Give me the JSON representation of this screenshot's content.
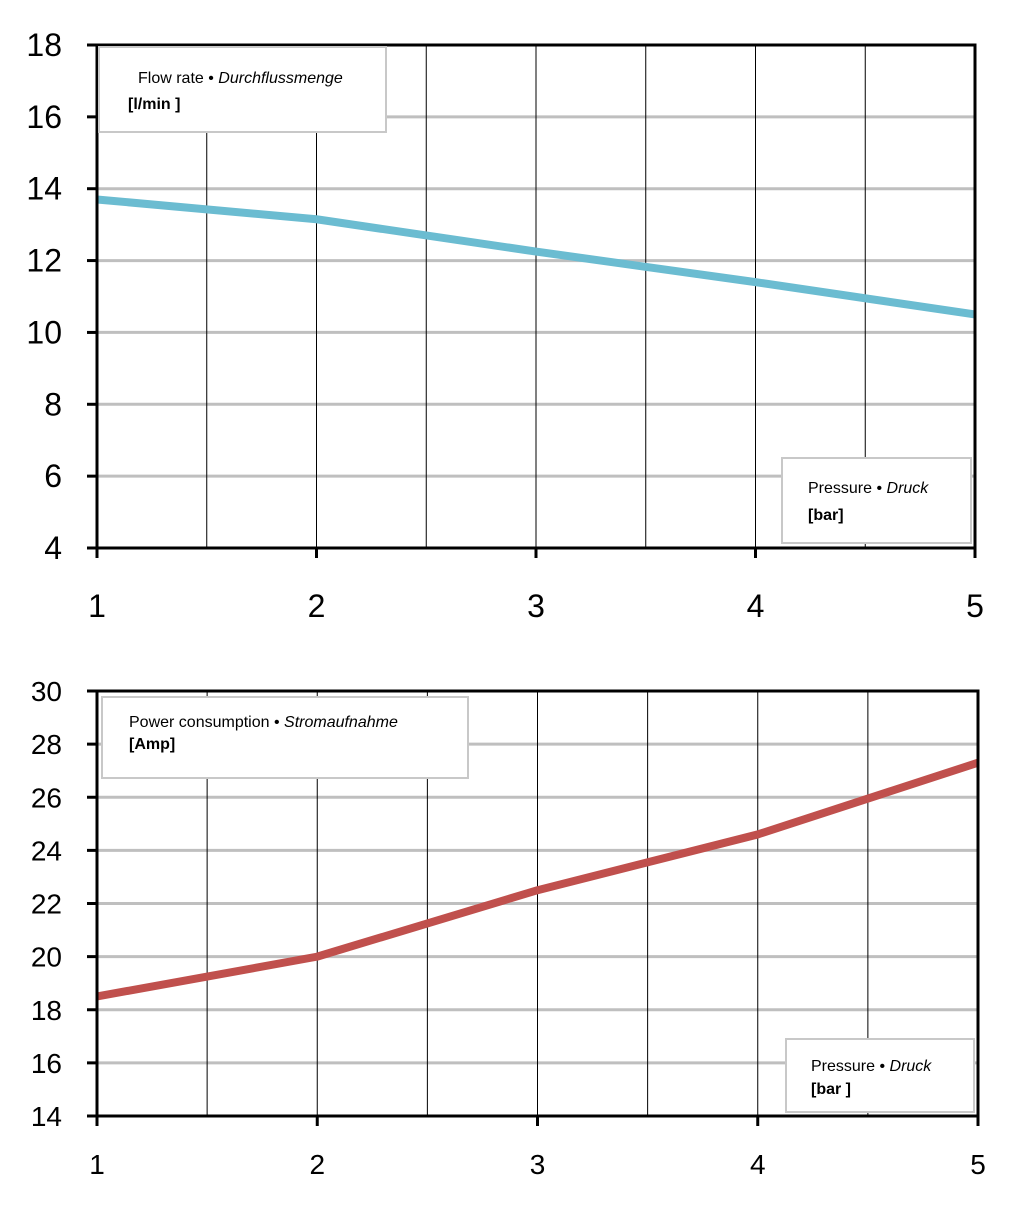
{
  "chart_data": [
    {
      "type": "line",
      "title": "",
      "x": [
        1,
        2,
        3,
        4,
        5
      ],
      "series": [
        {
          "values": [
            13.7,
            13.15,
            12.25,
            11.4,
            10.5
          ],
          "color": "#6BBCD1"
        }
      ],
      "xlim": [
        1,
        5
      ],
      "ylim": [
        4,
        18
      ],
      "y_ticks": [
        "4",
        "6",
        "8",
        "10",
        "12",
        "14",
        "16",
        "18"
      ],
      "x_ticks": [
        "1",
        "2",
        "3",
        "4",
        "5"
      ],
      "grid": true,
      "ylabel_box": {
        "main": "Flow rate • ",
        "italic": "Durchflussmenge",
        "unit": "[l/min ]"
      },
      "xlabel_box": {
        "main": "Pressure • ",
        "italic": "Druck",
        "unit": "[bar]"
      }
    },
    {
      "type": "line",
      "title": "",
      "x": [
        1,
        2,
        3,
        4,
        5
      ],
      "series": [
        {
          "values": [
            18.5,
            20.0,
            22.5,
            24.6,
            27.3
          ],
          "color": "#C0504D"
        }
      ],
      "xlim": [
        1,
        5
      ],
      "ylim": [
        14,
        30
      ],
      "y_ticks": [
        "14",
        "16",
        "18",
        "20",
        "22",
        "24",
        "26",
        "28",
        "30"
      ],
      "x_ticks": [
        "1",
        "2",
        "3",
        "4",
        "5"
      ],
      "grid": true,
      "ylabel_box": {
        "main": "Power consumption • ",
        "italic": "Stromaufnahme",
        "unit": "[Amp]"
      },
      "xlabel_box": {
        "main": "Pressure • ",
        "italic": "Druck",
        "unit": "[bar ]"
      }
    }
  ]
}
